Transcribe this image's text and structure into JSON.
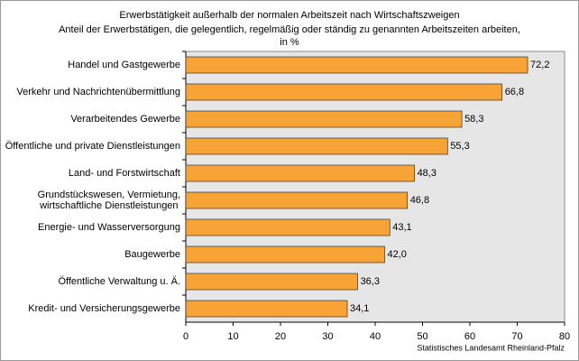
{
  "chart_data": {
    "type": "bar",
    "orientation": "horizontal",
    "title": "Erwerbstätigkeit außerhalb der normalen Arbeitszeit nach Wirtschaftszweigen",
    "subtitle": "Anteil der Erwerbstätigen, die gelegentlich, regelmäßig oder ständig zu genannten Arbeitszeiten arbeiten,",
    "unit": "in %",
    "source": "Statistisches Landesamt Rheinland-Pfalz",
    "categories": [
      "Handel und Gastgewerbe",
      "Verkehr und Nachrichtenübermittlung",
      "Verarbeitendes Gewerbe",
      "Öffentliche und private Dienstleistungen",
      "Land- und Forstwirtschaft",
      "Grundstückswesen, Vermietung,\nwirtschaftliche Dienstleistungen",
      "Energie- und Wasserversorgung",
      "Baugewerbe",
      "Öffentliche Verwaltung u. Ä.",
      "Kredit- und Versicherungsgewerbe"
    ],
    "values": [
      72.2,
      66.8,
      58.3,
      55.3,
      48.3,
      46.8,
      43.1,
      42.0,
      36.3,
      34.1
    ],
    "value_labels": [
      "72,2",
      "66,8",
      "58,3",
      "55,3",
      "48,3",
      "46,8",
      "43,1",
      "42,0",
      "36,3",
      "34,1"
    ],
    "color": "#f7a335",
    "xlim": [
      0,
      80
    ],
    "xticks": [
      0,
      10,
      20,
      30,
      40,
      50,
      60,
      70,
      80
    ],
    "grid": false
  }
}
